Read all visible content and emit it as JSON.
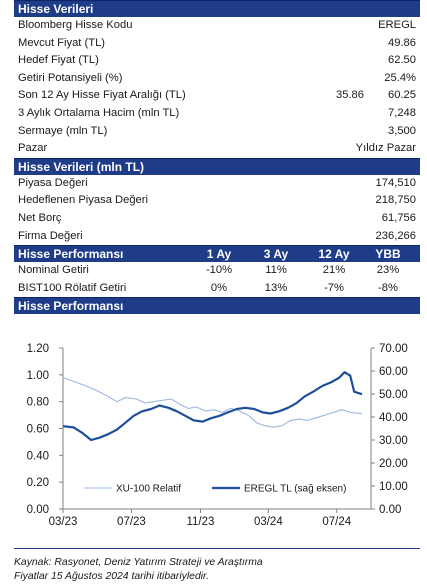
{
  "section1": {
    "title": "Hisse Verileri",
    "rows": [
      {
        "label": "Bloomberg Hisse Kodu",
        "mid": "",
        "value": "EREGL"
      },
      {
        "label": "Mevcut Fiyat (TL)",
        "mid": "",
        "value": "49.86"
      },
      {
        "label": "Hedef Fiyat (TL)",
        "mid": "",
        "value": "62.50"
      },
      {
        "label": "Getiri Potansiyeli (%)",
        "mid": "",
        "value": "25.4%"
      },
      {
        "label": "Son 12 Ay Hisse Fiyat Aralığı (TL)",
        "mid": "35.86",
        "value": "60.25"
      },
      {
        "label": "3 Aylık Ortalama Hacim (mln TL)",
        "mid": "",
        "value": "7,248"
      },
      {
        "label": "Sermaye (mln TL)",
        "mid": "",
        "value": "3,500"
      },
      {
        "label": "Pazar",
        "mid": "",
        "value": "Yıldız Pazar"
      }
    ]
  },
  "section2": {
    "title": "Hisse Verileri (mln TL)",
    "rows": [
      {
        "label": "Piyasa Değeri",
        "value": "174,510"
      },
      {
        "label": "Hedeflenen Piyasa Değeri",
        "value": "218,750"
      },
      {
        "label": "Net Borç",
        "value": "61,756"
      },
      {
        "label": "Firma Değeri",
        "value": "236,266"
      }
    ]
  },
  "section3": {
    "title": "Hisse Performansı",
    "columns": [
      "1 Ay",
      "3 Ay",
      "12 Ay",
      "YBB"
    ],
    "rows": [
      {
        "label": "Nominal Getiri",
        "values": [
          "-10%",
          "11%",
          "21%",
          "23%"
        ]
      },
      {
        "label": "BIST100 Rölatif Getiri",
        "values": [
          "0%",
          "13%",
          "-7%",
          "-8%"
        ]
      }
    ]
  },
  "section4": {
    "title": "Hisse Performansı"
  },
  "chart_data": {
    "type": "line",
    "x_ticks": [
      "03/23",
      "07/23",
      "11/23",
      "03/24",
      "07/24"
    ],
    "y_left": {
      "min": 0,
      "max": 1.2,
      "ticks": [
        "0.00",
        "0.20",
        "0.40",
        "0.60",
        "0.80",
        "1.00",
        "1.20"
      ]
    },
    "y_right": {
      "min": 0,
      "max": 70,
      "ticks": [
        "0.00",
        "10.00",
        "20.00",
        "30.00",
        "40.00",
        "50.00",
        "60.00",
        "70.00"
      ]
    },
    "series": [
      {
        "name": "XU-100 Relatif",
        "axis": "left",
        "color": "#9bb7e0",
        "points": [
          [
            "2023-03-01",
            0.98
          ],
          [
            "2023-03-20",
            0.95
          ],
          [
            "2023-04-10",
            0.92
          ],
          [
            "2023-05-01",
            0.88
          ],
          [
            "2023-05-20",
            0.84
          ],
          [
            "2023-06-05",
            0.8
          ],
          [
            "2023-06-20",
            0.83
          ],
          [
            "2023-07-10",
            0.82
          ],
          [
            "2023-07-25",
            0.79
          ],
          [
            "2023-08-10",
            0.8
          ],
          [
            "2023-08-25",
            0.81
          ],
          [
            "2023-09-10",
            0.82
          ],
          [
            "2023-09-25",
            0.78
          ],
          [
            "2023-10-10",
            0.75
          ],
          [
            "2023-10-25",
            0.76
          ],
          [
            "2023-11-10",
            0.73
          ],
          [
            "2023-11-25",
            0.74
          ],
          [
            "2023-12-10",
            0.72
          ],
          [
            "2023-12-25",
            0.75
          ],
          [
            "2024-01-10",
            0.73
          ],
          [
            "2024-01-25",
            0.7
          ],
          [
            "2024-02-10",
            0.64
          ],
          [
            "2024-02-25",
            0.62
          ],
          [
            "2024-03-10",
            0.61
          ],
          [
            "2024-03-25",
            0.62
          ],
          [
            "2024-04-10",
            0.66
          ],
          [
            "2024-04-25",
            0.67
          ],
          [
            "2024-05-10",
            0.66
          ],
          [
            "2024-05-25",
            0.68
          ],
          [
            "2024-06-10",
            0.7
          ],
          [
            "2024-06-25",
            0.72
          ],
          [
            "2024-07-10",
            0.74
          ],
          [
            "2024-07-25",
            0.72
          ],
          [
            "2024-08-15",
            0.71
          ]
        ]
      },
      {
        "name": "EREGL TL (sağ eksen)",
        "axis": "right",
        "color": "#1f4e9a",
        "points": [
          [
            "2023-03-01",
            36.0
          ],
          [
            "2023-03-20",
            35.5
          ],
          [
            "2023-04-05",
            33.0
          ],
          [
            "2023-04-20",
            30.0
          ],
          [
            "2023-05-05",
            31.0
          ],
          [
            "2023-05-20",
            32.5
          ],
          [
            "2023-06-05",
            34.5
          ],
          [
            "2023-06-20",
            37.5
          ],
          [
            "2023-07-05",
            40.5
          ],
          [
            "2023-07-20",
            42.5
          ],
          [
            "2023-08-05",
            43.5
          ],
          [
            "2023-08-20",
            45.0
          ],
          [
            "2023-09-05",
            44.0
          ],
          [
            "2023-09-20",
            42.5
          ],
          [
            "2023-10-05",
            40.5
          ],
          [
            "2023-10-20",
            38.5
          ],
          [
            "2023-11-05",
            38.0
          ],
          [
            "2023-11-20",
            39.5
          ],
          [
            "2023-12-05",
            40.5
          ],
          [
            "2023-12-20",
            42.0
          ],
          [
            "2024-01-05",
            43.5
          ],
          [
            "2024-01-20",
            44.0
          ],
          [
            "2024-02-05",
            43.5
          ],
          [
            "2024-02-20",
            42.0
          ],
          [
            "2024-03-05",
            41.5
          ],
          [
            "2024-03-20",
            42.5
          ],
          [
            "2024-04-05",
            44.0
          ],
          [
            "2024-04-20",
            46.0
          ],
          [
            "2024-05-05",
            49.0
          ],
          [
            "2024-05-20",
            51.0
          ],
          [
            "2024-06-05",
            53.5
          ],
          [
            "2024-06-20",
            55.0
          ],
          [
            "2024-07-05",
            57.0
          ],
          [
            "2024-07-15",
            59.5
          ],
          [
            "2024-07-25",
            58.0
          ],
          [
            "2024-08-01",
            51.0
          ],
          [
            "2024-08-15",
            49.9
          ]
        ]
      }
    ]
  },
  "footer": {
    "line1": "Kaynak: Rasyonet, Deniz Yatırım Strateji ve Araştırma",
    "line2": "Fiyatlar 15 Ağustos 2024 tarihi itibariyledir."
  }
}
